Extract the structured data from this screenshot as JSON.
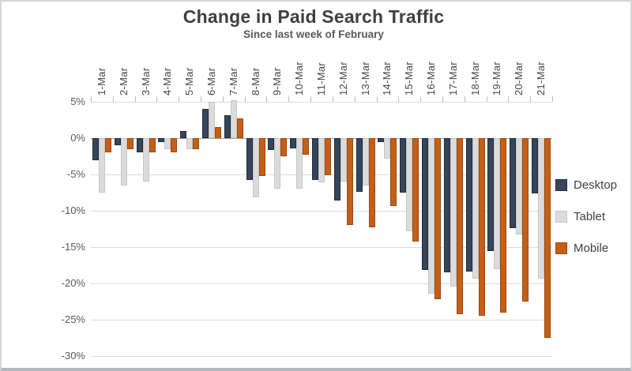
{
  "chart_data": {
    "type": "bar",
    "title": "Change in Paid Search Traffic",
    "subtitle": "Since last week of February",
    "categories": [
      "1-Mar",
      "2-Mar",
      "3-Mar",
      "4-Mar",
      "5-Mar",
      "6-Mar",
      "7-Mar",
      "8-Mar",
      "9-Mar",
      "10-Mar",
      "11-Mar",
      "12-Mar",
      "13-Mar",
      "14-Mar",
      "15-Mar",
      "16-Mar",
      "17-Mar",
      "18-Mar",
      "19-Mar",
      "20-Mar",
      "21-Mar"
    ],
    "series": [
      {
        "name": "Desktop",
        "color": "#36455A",
        "border": "#1e2b3a",
        "values": [
          -3,
          -1,
          -2,
          -0.5,
          1,
          4,
          3.2,
          -5.8,
          -1.6,
          -1.4,
          -5.8,
          -8.6,
          -7.4,
          -0.5,
          -7.5,
          -18.2,
          -18.5,
          -18.4,
          -15.5,
          -12.4,
          -7.6
        ]
      },
      {
        "name": "Tablet",
        "color": "#DBDBDB",
        "border": "#c6c6c6",
        "values": [
          -7.5,
          -6.5,
          -6,
          -1.5,
          -1.5,
          5,
          5.2,
          -8.1,
          -7,
          -7,
          -6.1,
          -6,
          -6.5,
          -2.8,
          -12.8,
          -21.4,
          -20.4,
          -19.3,
          -18,
          -13.3,
          -19.3
        ]
      },
      {
        "name": "Mobile",
        "color": "#C55F17",
        "border": "#9a4a10",
        "values": [
          -2,
          -1.5,
          -2,
          -2,
          -1.5,
          1.5,
          2.7,
          -5.2,
          -2.5,
          -2.3,
          -5.1,
          -12,
          -12.3,
          -9.4,
          -14.2,
          -22.2,
          -24.2,
          -24.5,
          -24,
          -22.5,
          -27.5
        ]
      }
    ],
    "ylim": [
      -30,
      5
    ],
    "ytick_step": 5,
    "ytick_labels": [
      "5%",
      "0%",
      "-5%",
      "-10%",
      "-15%",
      "-20%",
      "-25%",
      "-30%"
    ],
    "unit": "%",
    "legend_position": "right",
    "grid": true,
    "axis_labels_position": "top"
  }
}
